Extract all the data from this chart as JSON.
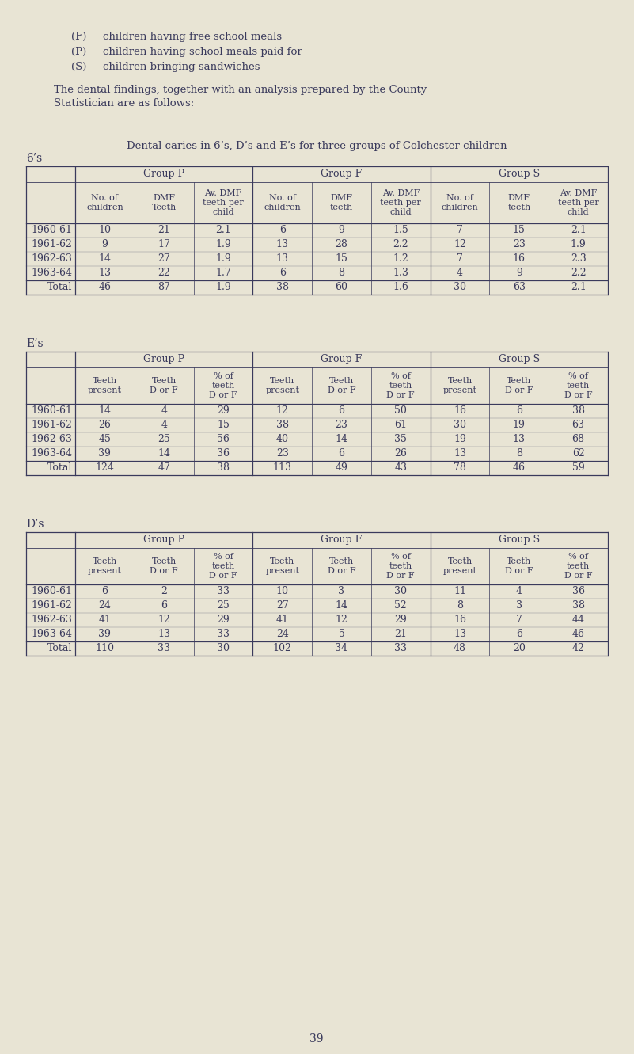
{
  "bg_color": "#e8e4d4",
  "text_color": "#3a3a5c",
  "font_family": "DejaVu Serif",
  "intro_lines": [
    [
      "(F)",
      "children having free school meals"
    ],
    [
      "(P)",
      "children having school meals paid for"
    ],
    [
      "(S)",
      "children bringing sandwiches"
    ]
  ],
  "paragraph_line1": "The dental findings, together with an analysis prepared by the County",
  "paragraph_line2": "Statistician are as follows:",
  "main_title": "Dental caries in 6’s, D’s and E’s for three groups of Colchester children",
  "section_6s_label": "6’s",
  "section_es_label": "E’s",
  "section_ds_label": "D’s",
  "page_number": "39",
  "table_6s": {
    "group_headers": [
      "Group P",
      "Group F",
      "Group S"
    ],
    "col_headers": [
      "No. of\nchildren",
      "DMF\nTeeth",
      "Av. DMF\nteeth per\nchild",
      "No. of\nchildren",
      "DMF\nteeth",
      "Av. DMF\nteeth per\nchild",
      "No. of\nchildren",
      "DMF\nteeth",
      "Av. DMF\nteeth per\nchild"
    ],
    "row_labels": [
      "1960-61",
      "1961-62",
      "1962-63",
      "1963-64",
      "Total"
    ],
    "data": [
      [
        "10",
        "21",
        "2.1",
        "6",
        "9",
        "1.5",
        "7",
        "15",
        "2.1"
      ],
      [
        "9",
        "17",
        "1.9",
        "13",
        "28",
        "2.2",
        "12",
        "23",
        "1.9"
      ],
      [
        "14",
        "27",
        "1.9",
        "13",
        "15",
        "1.2",
        "7",
        "16",
        "2.3"
      ],
      [
        "13",
        "22",
        "1.7",
        "6",
        "8",
        "1.3",
        "4",
        "9",
        "2.2"
      ],
      [
        "46",
        "87",
        "1.9",
        "38",
        "60",
        "1.6",
        "30",
        "63",
        "2.1"
      ]
    ]
  },
  "table_es": {
    "group_headers": [
      "Group P",
      "Group F",
      "Group S"
    ],
    "col_headers": [
      "Teeth\npresent",
      "Teeth\nD or F",
      "% of\nteeth\nD or F",
      "Teeth\npresent",
      "Teeth\nD or F",
      "% of\nteeth\nD or F",
      "Teeth\npresent",
      "Teeth\nD or F",
      "% of\nteeth\nD or F"
    ],
    "row_labels": [
      "1960-61",
      "1961-62",
      "1962-63",
      "1963-64",
      "Total"
    ],
    "data": [
      [
        "14",
        "4",
        "29",
        "12",
        "6",
        "50",
        "16",
        "6",
        "38"
      ],
      [
        "26",
        "4",
        "15",
        "38",
        "23",
        "61",
        "30",
        "19",
        "63"
      ],
      [
        "45",
        "25",
        "56",
        "40",
        "14",
        "35",
        "19",
        "13",
        "68"
      ],
      [
        "39",
        "14",
        "36",
        "23",
        "6",
        "26",
        "13",
        "8",
        "62"
      ],
      [
        "124",
        "47",
        "38",
        "113",
        "49",
        "43",
        "78",
        "46",
        "59"
      ]
    ]
  },
  "table_ds": {
    "group_headers": [
      "Group P",
      "Group F",
      "Group S"
    ],
    "col_headers": [
      "Teeth\npresent",
      "Teeth\nD or F",
      "% of\nteeth\nD or F",
      "Teeth\npresent",
      "Teeth\nD or F",
      "% of\nteeth\nD or F",
      "Teeth\npresent",
      "Teeth\nD or F",
      "% of\nteeth\nD or F"
    ],
    "row_labels": [
      "1960-61",
      "1961-62",
      "1962-63",
      "1963-64",
      "Total"
    ],
    "data": [
      [
        "6",
        "2",
        "33",
        "10",
        "3",
        "30",
        "11",
        "4",
        "36"
      ],
      [
        "24",
        "6",
        "25",
        "27",
        "14",
        "52",
        "8",
        "3",
        "38"
      ],
      [
        "41",
        "12",
        "29",
        "41",
        "12",
        "29",
        "16",
        "7",
        "44"
      ],
      [
        "39",
        "13",
        "33",
        "24",
        "5",
        "21",
        "13",
        "6",
        "46"
      ],
      [
        "110",
        "33",
        "30",
        "102",
        "34",
        "33",
        "48",
        "20",
        "42"
      ]
    ]
  }
}
